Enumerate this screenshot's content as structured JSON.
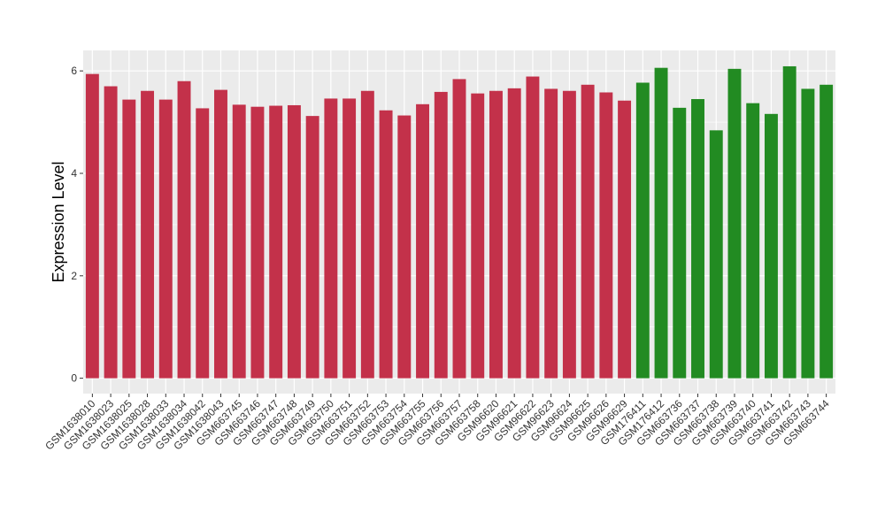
{
  "chart_data": {
    "type": "bar",
    "xlabel": "",
    "ylabel": "Expression Level",
    "ylim": [
      -0.3,
      6.4
    ],
    "yticks": [
      0,
      2,
      4,
      6
    ],
    "grid": true,
    "legend": "none",
    "colors": {
      "panel": "#ebebeb",
      "grid": "#ffffff",
      "group_1": "#c3314a",
      "group_2": "#228b22"
    },
    "categories": [
      "GSM1638010",
      "GSM1638023",
      "GSM1638025",
      "GSM1638028",
      "GSM1638033",
      "GSM1638034",
      "GSM1638042",
      "GSM1638043",
      "GSM663745",
      "GSM663746",
      "GSM663747",
      "GSM663748",
      "GSM663749",
      "GSM663750",
      "GSM663751",
      "GSM663752",
      "GSM663753",
      "GSM663754",
      "GSM663755",
      "GSM663756",
      "GSM663757",
      "GSM663758",
      "GSM96620",
      "GSM96621",
      "GSM96622",
      "GSM96623",
      "GSM96624",
      "GSM96625",
      "GSM96626",
      "GSM96629",
      "GSM176411",
      "GSM176412",
      "GSM663736",
      "GSM663737",
      "GSM663738",
      "GSM663739",
      "GSM663740",
      "GSM663741",
      "GSM663742",
      "GSM663743",
      "GSM663744"
    ],
    "values": [
      5.94,
      5.7,
      5.44,
      5.61,
      5.44,
      5.8,
      5.27,
      5.63,
      5.34,
      5.3,
      5.32,
      5.33,
      5.12,
      5.46,
      5.46,
      5.61,
      5.23,
      5.13,
      5.35,
      5.59,
      5.84,
      5.56,
      5.61,
      5.66,
      5.89,
      5.65,
      5.61,
      5.73,
      5.58,
      5.42,
      5.77,
      6.06,
      5.28,
      5.45,
      4.84,
      6.04,
      5.37,
      5.16,
      6.09,
      5.65,
      5.73
    ],
    "groups": [
      "group_1",
      "group_1",
      "group_1",
      "group_1",
      "group_1",
      "group_1",
      "group_1",
      "group_1",
      "group_1",
      "group_1",
      "group_1",
      "group_1",
      "group_1",
      "group_1",
      "group_1",
      "group_1",
      "group_1",
      "group_1",
      "group_1",
      "group_1",
      "group_1",
      "group_1",
      "group_1",
      "group_1",
      "group_1",
      "group_1",
      "group_1",
      "group_1",
      "group_1",
      "group_1",
      "group_2",
      "group_2",
      "group_2",
      "group_2",
      "group_2",
      "group_2",
      "group_2",
      "group_2",
      "group_2",
      "group_2",
      "group_2"
    ]
  }
}
